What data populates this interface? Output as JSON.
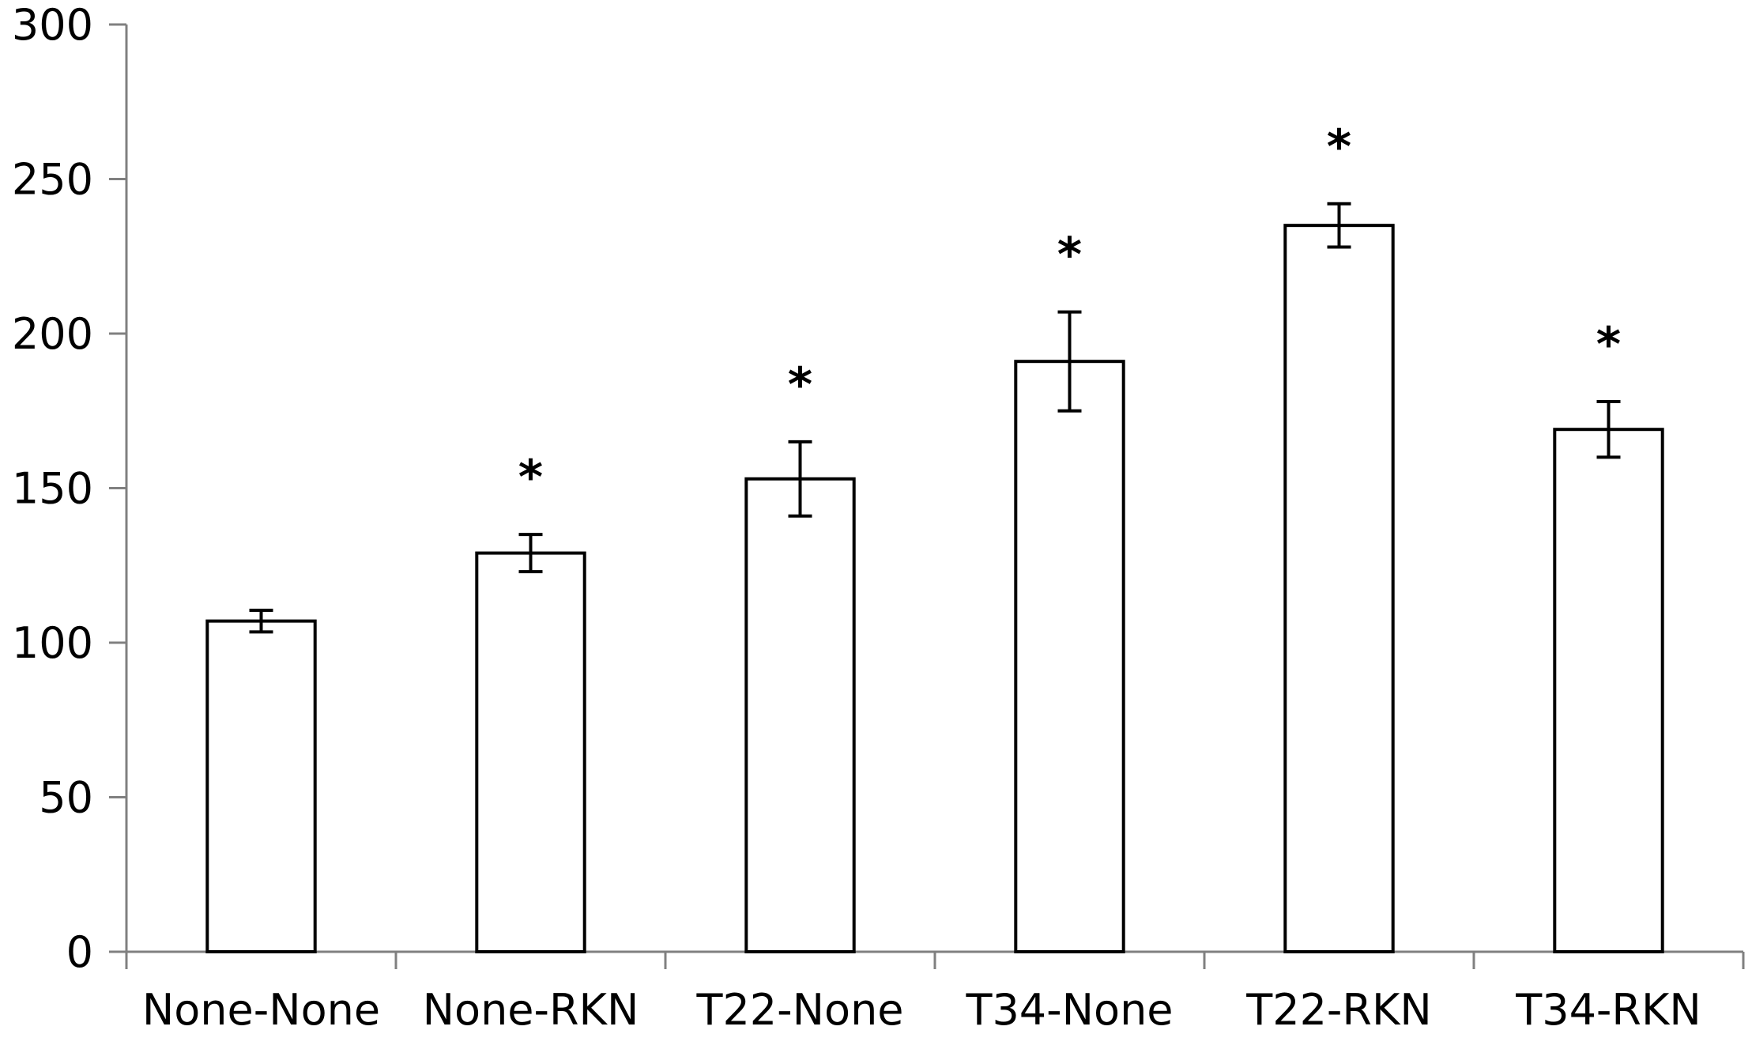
{
  "chart_data": {
    "type": "bar",
    "title": "",
    "xlabel": "",
    "ylabel": "",
    "ylim": [
      0,
      300
    ],
    "yticks": [
      0,
      50,
      100,
      150,
      200,
      250,
      300
    ],
    "grid": false,
    "legend": null,
    "categories": [
      "None-None",
      "None-RKN",
      "T22-None",
      "T34-None",
      "T22-RKN",
      "T34-RKN"
    ],
    "values": [
      107,
      129,
      153,
      191,
      235,
      169
    ],
    "errors": [
      3.5,
      6,
      12,
      16,
      7,
      9
    ],
    "significance": [
      "",
      "*",
      "*",
      "*",
      "*",
      "*"
    ],
    "bar_fill": "#ffffff",
    "bar_stroke": "#000000",
    "axis_color": "#808080"
  }
}
